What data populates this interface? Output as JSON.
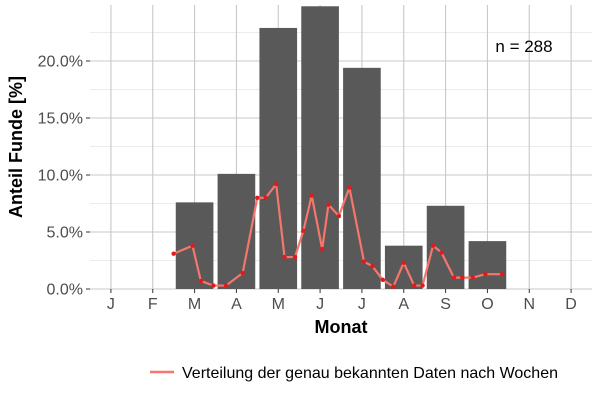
{
  "chart_data": {
    "type": "bar",
    "xlabel": "Monat",
    "ylabel": "Anteil Funde [%]",
    "categories": [
      "J",
      "F",
      "M",
      "A",
      "M",
      "J",
      "J",
      "A",
      "S",
      "O",
      "N",
      "D"
    ],
    "values": [
      0,
      0,
      7.6,
      10.1,
      22.9,
      24.8,
      19.4,
      3.8,
      7.3,
      4.2,
      0,
      0
    ],
    "ylim": [
      0,
      25
    ],
    "yticks": [
      0,
      5,
      10,
      15,
      20
    ],
    "ytick_labels": [
      "0.0%",
      "5.0%",
      "10.0%",
      "15.0%",
      "20.0%"
    ],
    "grid": true,
    "bar_color": "#595959",
    "annotation": "n = 288",
    "line_series": {
      "name": "Verteilung der genau bekannten Daten nach Wochen",
      "color": "#f4766d",
      "point_color": "#e31a1c",
      "x": [
        2.5,
        2.95,
        3.15,
        3.45,
        3.75,
        4.15,
        4.5,
        4.7,
        4.95,
        5.15,
        5.4,
        5.6,
        5.8,
        6.05,
        6.2,
        6.45,
        6.7,
        7.05,
        7.25,
        7.5,
        7.75,
        8.0,
        8.25,
        8.45,
        8.7,
        8.9,
        9.2,
        9.4,
        9.65,
        9.95,
        10.35
      ],
      "y": [
        3.1,
        3.8,
        0.7,
        0.3,
        0.3,
        1.4,
        8.0,
        8.0,
        9.2,
        2.8,
        2.8,
        5.1,
        8.2,
        3.5,
        7.4,
        6.4,
        8.9,
        2.4,
        2.0,
        0.8,
        0.2,
        2.3,
        0.3,
        0.3,
        3.8,
        3.2,
        1.0,
        1.0,
        1.0,
        1.3,
        1.3
      ]
    }
  }
}
